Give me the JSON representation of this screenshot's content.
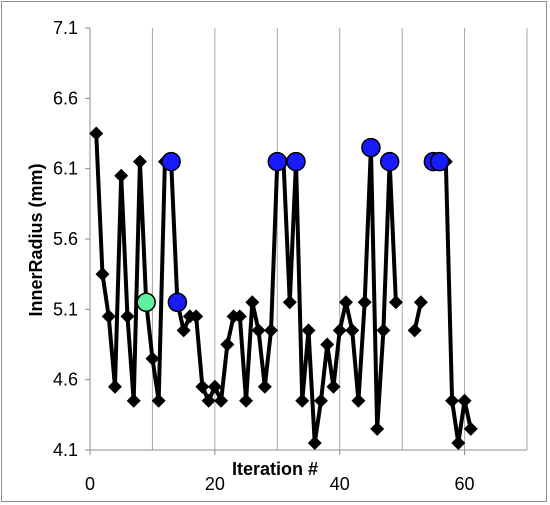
{
  "chart_data": {
    "type": "line",
    "title": "",
    "xlabel": "Iteration #",
    "ylabel": "InnerRadius (mm)",
    "xlim": [
      0,
      70
    ],
    "ylim": [
      4.1,
      7.1
    ],
    "x_ticks": [
      0,
      20,
      40,
      60
    ],
    "x_tick_labels": [
      "0",
      "20",
      "40",
      "60"
    ],
    "y_ticks": [
      4.1,
      4.6,
      5.1,
      5.6,
      6.1,
      6.6,
      7.1
    ],
    "y_tick_labels": [
      "4.1",
      "4.6",
      "5.1",
      "5.6",
      "6.1",
      "6.6",
      "7.1"
    ],
    "grid": {
      "vertical": true,
      "horizontal": false
    },
    "legend": "none",
    "colors": {
      "line": "#000000",
      "diamond_marker": "#000000",
      "blue_marker": "#1a1aff",
      "green_marker": "#5ef2a0",
      "grid": "#a6a6a6"
    },
    "segments": [
      {
        "x": [
          1,
          2,
          3,
          4,
          5,
          6,
          7,
          8,
          9,
          10,
          11,
          12,
          13,
          14,
          15,
          16,
          17,
          18,
          19,
          20,
          21,
          22,
          23,
          24,
          25,
          26,
          27,
          28,
          29,
          30,
          31,
          32,
          33,
          34,
          35,
          36,
          37,
          38,
          39,
          40,
          41,
          42,
          43,
          44,
          45,
          46,
          47,
          48,
          49
        ],
        "y": [
          6.35,
          5.35,
          5.05,
          4.55,
          6.05,
          5.05,
          4.45,
          6.15,
          5.15,
          4.75,
          4.45,
          6.15,
          6.15,
          5.15,
          4.95,
          5.05,
          5.05,
          4.55,
          4.45,
          4.55,
          4.45,
          4.85,
          5.05,
          5.05,
          4.45,
          5.15,
          4.95,
          4.55,
          4.95,
          6.15,
          6.15,
          5.15,
          6.15,
          4.45,
          4.95,
          4.15,
          4.45,
          4.85,
          4.55,
          4.95,
          5.15,
          4.95,
          4.45,
          5.15,
          6.25,
          4.25,
          4.95,
          6.15,
          5.15
        ]
      },
      {
        "x": [
          52,
          53
        ],
        "y": [
          4.95,
          5.15
        ]
      },
      {
        "x": [
          55,
          56,
          57,
          58,
          59,
          60,
          61
        ],
        "y": [
          6.15,
          6.15,
          6.15,
          4.45,
          4.15,
          4.45,
          4.25
        ]
      }
    ],
    "highlight_points": {
      "blue": {
        "x": [
          13,
          14,
          30,
          33,
          45,
          48,
          55,
          56
        ],
        "y": [
          6.15,
          5.15,
          6.15,
          6.15,
          6.25,
          6.15,
          6.15,
          6.15
        ]
      },
      "green": {
        "x": [
          9
        ],
        "y": [
          5.15
        ]
      }
    }
  }
}
